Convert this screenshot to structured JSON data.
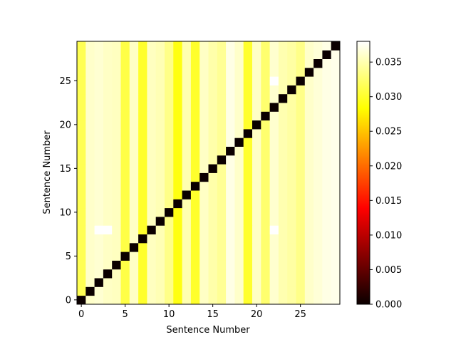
{
  "chart_data": {
    "type": "heatmap",
    "title": "",
    "xlabel": "Sentence Number",
    "ylabel": "Sentence Number",
    "n": 30,
    "xlim": [
      -0.5,
      29.5
    ],
    "ylim": [
      -0.5,
      29.5
    ],
    "x_ticks": [
      0,
      5,
      10,
      15,
      20,
      25
    ],
    "y_ticks": [
      0,
      5,
      10,
      15,
      20,
      25
    ],
    "colormap": "hot",
    "colorbar": {
      "min": 0.0,
      "max": 0.038,
      "ticks": [
        0.0,
        0.005,
        0.01,
        0.015,
        0.02,
        0.025,
        0.03,
        0.035
      ],
      "tick_labels": [
        "0.000",
        "0.005",
        "0.010",
        "0.015",
        "0.020",
        "0.025",
        "0.030",
        "0.035"
      ]
    },
    "diagonal_value": 0.0,
    "column_values": [
      0.0315,
      0.036,
      0.0363,
      0.0358,
      0.0356,
      0.031,
      0.0358,
      0.03,
      0.0356,
      0.0352,
      0.0335,
      0.029,
      0.035,
      0.03,
      0.0358,
      0.0348,
      0.034,
      0.037,
      0.036,
      0.03,
      0.0358,
      0.0325,
      0.0362,
      0.035,
      0.0345,
      0.0335,
      0.036,
      0.0365,
      0.037,
      0.0372
    ],
    "notes": "Each cell value ~ column_values[x] off the diagonal; diagonal cells are 0.000 (black). A few brighter outliers near (2-3, 8) and (22, 8/25)."
  }
}
